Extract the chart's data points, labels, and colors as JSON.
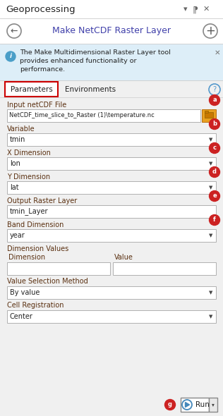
{
  "title": "Geoprocessing",
  "subtitle": "Make NetCDF Raster Layer",
  "info_text_line1": "The Make Multidimensional Raster Layer tool",
  "info_text_line2": "provides enhanced functionality or",
  "info_text_line3": "performance.",
  "tab1": "Parameters",
  "tab2": "Environments",
  "fields": [
    {
      "label": "Input netCDF File",
      "value": "NetCDF_time_slice_to_Raster (1)\\temperature.nc",
      "type": "file",
      "badge": "a"
    },
    {
      "label": "Variable",
      "value": "tmin",
      "type": "dropdown",
      "badge": "b"
    },
    {
      "label": "X Dimension",
      "value": "lon",
      "type": "dropdown",
      "badge": "c"
    },
    {
      "label": "Y Dimension",
      "value": "lat",
      "type": "dropdown",
      "badge": "d"
    },
    {
      "label": "Output Raster Layer",
      "value": "tmin_Layer",
      "type": "text",
      "badge": "e"
    },
    {
      "label": "Band Dimension",
      "value": "year",
      "type": "dropdown",
      "badge": "f"
    }
  ],
  "dim_values_label": "Dimension Values",
  "dim_col": "Dimension",
  "val_col": "Value",
  "value_sel_label": "Value Selection Method",
  "value_sel_value": "By value",
  "cell_reg_label": "Cell Registration",
  "cell_reg_value": "Center",
  "run_badge": "g",
  "bg_color": "#f0f0f0",
  "header_bg": "#ffffff",
  "info_bg": "#ddeef8",
  "tab_border_color": "#cc0000",
  "label_color": "#5a3010",
  "text_color": "#222222",
  "field_bg": "#ffffff",
  "field_border": "#b0b0b0",
  "badge_color": "#cc2222",
  "badge_text": "#ffffff",
  "title_color": "#222222",
  "subtitle_color": "#4040aa",
  "info_text_color": "#222222",
  "separator_color": "#cccccc",
  "icon_color": "#666666",
  "help_circle_color": "#5599cc",
  "run_play_color": "#4488bb",
  "folder_bg": "#e8a020",
  "folder_border": "#b87010"
}
